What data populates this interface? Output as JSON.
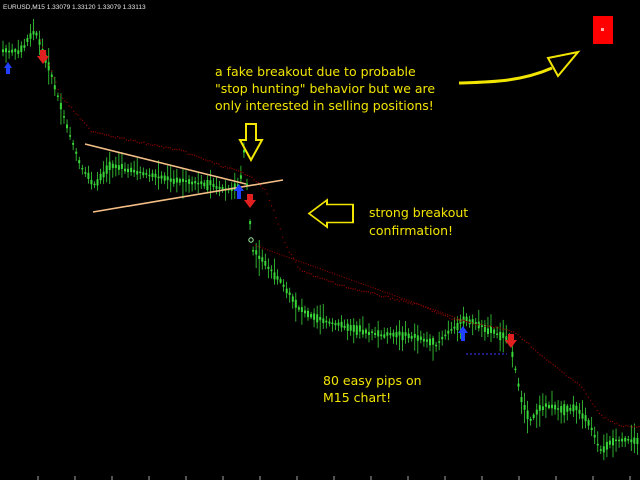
{
  "header": {
    "symbol_line": "EURUSD,M15  1.33079 1.33120 1.33079 1.33113"
  },
  "colors": {
    "background": "#000000",
    "candle": "#39d639",
    "trailing_stop": "#8b0000",
    "trendline": "#f5c088",
    "annotation": "#f2e500",
    "sell_signal": "#e02020",
    "buy_signal": "#2040ff",
    "target_line": "#3a3aff",
    "indicator_box": "#ff0000"
  },
  "annotations": {
    "fake_breakout": [
      "a fake breakout due to probable",
      "\"stop hunting\" behavior but we are",
      "only interested in selling positions!"
    ],
    "strong_breakout": [
      "strong breakout",
      "confirmation!"
    ],
    "pips": [
      "80 easy pips on",
      "M15 chart!"
    ]
  },
  "chart_data": {
    "type": "line",
    "title": "EURUSD,M15  1.33079 1.33120 1.33079 1.33113",
    "symbol": "EURUSD",
    "timeframe": "M15",
    "quote": {
      "open": 1.33079,
      "high": 1.3312,
      "low": 1.33079,
      "close": 1.33113
    },
    "xlabel": "",
    "ylabel": "",
    "grid": false,
    "x": [
      0,
      2,
      4,
      6,
      8,
      10,
      12,
      14,
      16,
      18,
      20,
      22,
      24,
      26,
      28,
      30,
      32,
      34,
      36,
      38,
      40,
      42,
      44,
      46,
      48,
      50,
      52,
      54,
      56,
      58,
      60,
      62,
      64,
      66,
      68,
      70,
      72,
      74,
      76,
      78,
      80,
      82,
      84,
      86,
      88,
      90,
      92,
      94,
      96,
      98,
      100,
      102,
      104,
      106,
      108,
      110,
      112,
      114,
      116,
      118,
      120,
      122,
      124,
      126,
      128,
      130,
      132,
      134,
      136,
      138,
      140,
      142,
      144,
      146,
      148,
      150,
      152,
      154,
      156,
      158,
      160,
      162,
      164,
      166,
      168,
      170,
      172,
      174,
      176,
      178,
      180,
      182,
      184,
      186,
      188,
      190,
      192,
      194,
      196,
      198,
      200,
      202,
      204,
      206,
      208,
      210,
      212,
      214,
      216,
      218,
      220,
      222,
      224,
      226,
      228,
      230,
      232,
      234,
      236,
      238,
      240,
      242,
      244,
      246,
      248,
      250,
      252,
      254,
      256,
      258,
      260,
      262,
      264,
      266,
      268,
      270,
      272,
      274,
      276,
      278,
      280,
      282,
      284,
      286,
      288,
      290,
      292,
      294,
      296,
      298,
      300
    ],
    "series": [
      {
        "name": "",
        "values": [
          62,
          60,
          58,
          56,
          54,
          52,
          48,
          46,
          44,
          42,
          40,
          38,
          40,
          42,
          46,
          48,
          50,
          54,
          56,
          58,
          60,
          62,
          64,
          66,
          68,
          70,
          72,
          74,
          76,
          78,
          80,
          78,
          76,
          74,
          72,
          70,
          68,
          66,
          64,
          62,
          60,
          58,
          56,
          54,
          52,
          50,
          48,
          46,
          44,
          42,
          40,
          38,
          36,
          34,
          32,
          30,
          28,
          26,
          24,
          22,
          20,
          18,
          16,
          14,
          12,
          10,
          8,
          6,
          4,
          2,
          0,
          -2,
          -4,
          -6,
          -8,
          -10,
          -12,
          -14,
          -16,
          -18,
          -20,
          -22,
          -24,
          -26,
          -28,
          -30,
          -32,
          -34,
          -36,
          -38,
          -40,
          -42,
          -44,
          -46,
          -48,
          -50,
          -52,
          -54,
          -56,
          -58,
          -60,
          -62,
          -64,
          -66,
          -68,
          -70,
          -72,
          -74,
          -76,
          -78,
          -80,
          -82,
          -84,
          -86,
          -88,
          -90,
          -92,
          -94,
          -96,
          -98,
          -100,
          -102,
          -104,
          -106,
          -108,
          -110,
          -112,
          -114,
          -116,
          -118,
          -120,
          -122,
          -124,
          -126,
          -128,
          -130,
          -132,
          -134,
          -136,
          -138,
          -140,
          -142,
          -144,
          -146,
          -148,
          -150,
          -152,
          -154,
          -156,
          -158,
          -160
        ]
      }
    ]
  }
}
